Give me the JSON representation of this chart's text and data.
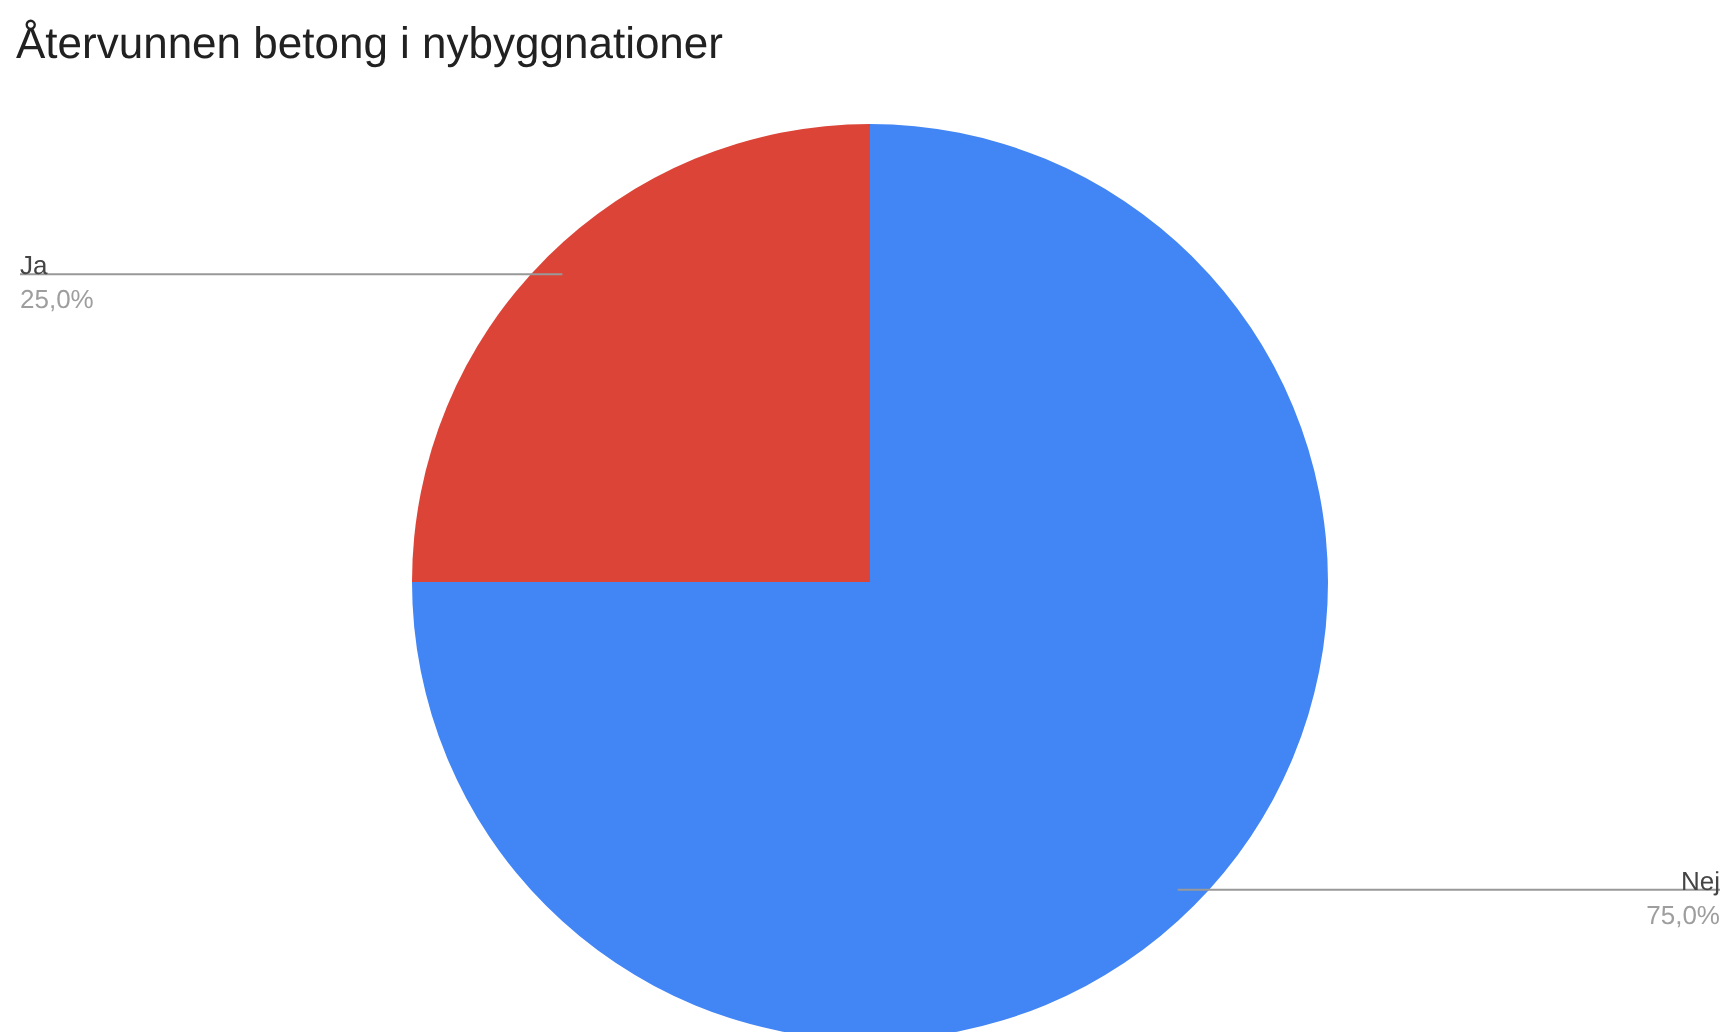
{
  "chart_data": {
    "type": "pie",
    "title": "Återvunnen betong i nybyggnationer",
    "categories": [
      "Nej",
      "Ja"
    ],
    "values": [
      75,
      25
    ],
    "value_labels": [
      "75,0%",
      "25,0%"
    ],
    "colors": [
      "#4285f4",
      "#db4437"
    ],
    "legend": false
  }
}
